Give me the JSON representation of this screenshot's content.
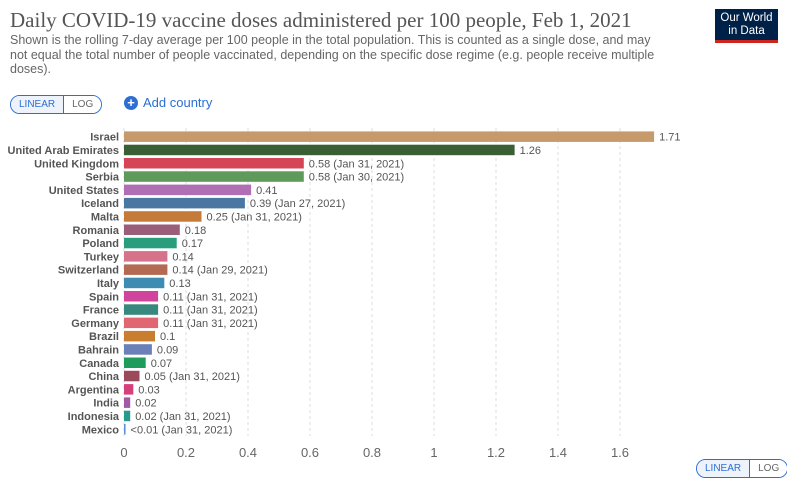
{
  "header": {
    "title": "Daily COVID-19 vaccine doses administered per 100 people, Feb 1, 2021",
    "subtitle": "Shown is the rolling 7-day average per 100 people in the total population. This is counted as a single dose, and may not equal the total number of people vaccinated, depending on the specific dose regime (e.g. people receive multiple doses).",
    "logo_line1": "Our World",
    "logo_line2": "in Data"
  },
  "controls": {
    "linear_label": "LINEAR",
    "log_label": "LOG",
    "add_country_label": "Add country",
    "accent_color": "#2c6ed5"
  },
  "chart_data": {
    "type": "bar",
    "orientation": "horizontal",
    "title": "Daily COVID-19 vaccine doses administered per 100 people, Feb 1, 2021",
    "xlabel": "",
    "ylabel": "",
    "xlim": [
      0,
      1.71
    ],
    "xticks": [
      0,
      0.2,
      0.4,
      0.6,
      0.8,
      1,
      1.2,
      1.4,
      1.6
    ],
    "grid": true,
    "bars": [
      {
        "category": "Israel",
        "value": 1.71,
        "label": "1.71",
        "color": "#c69a6b"
      },
      {
        "category": "United Arab Emirates",
        "value": 1.26,
        "label": "1.26",
        "color": "#3a5f34"
      },
      {
        "category": "United Kingdom",
        "value": 0.58,
        "label": "0.58 (Jan 31, 2021)",
        "color": "#d64555"
      },
      {
        "category": "Serbia",
        "value": 0.58,
        "label": "0.58 (Jan 30, 2021)",
        "color": "#5e9a5a"
      },
      {
        "category": "United States",
        "value": 0.41,
        "label": "0.41",
        "color": "#b06fb5"
      },
      {
        "category": "Iceland",
        "value": 0.39,
        "label": "0.39 (Jan 27, 2021)",
        "color": "#4a77a2"
      },
      {
        "category": "Malta",
        "value": 0.25,
        "label": "0.25 (Jan 31, 2021)",
        "color": "#c47a38"
      },
      {
        "category": "Romania",
        "value": 0.18,
        "label": "0.18",
        "color": "#9b5e7a"
      },
      {
        "category": "Poland",
        "value": 0.17,
        "label": "0.17",
        "color": "#2a9d7c"
      },
      {
        "category": "Turkey",
        "value": 0.14,
        "label": "0.14",
        "color": "#d6738a"
      },
      {
        "category": "Switzerland",
        "value": 0.14,
        "label": "0.14 (Jan 29, 2021)",
        "color": "#b46a52"
      },
      {
        "category": "Italy",
        "value": 0.13,
        "label": "0.13",
        "color": "#3f8cb2"
      },
      {
        "category": "Spain",
        "value": 0.11,
        "label": "0.11 (Jan 31, 2021)",
        "color": "#d1449e"
      },
      {
        "category": "France",
        "value": 0.11,
        "label": "0.11 (Jan 31, 2021)",
        "color": "#36897c"
      },
      {
        "category": "Germany",
        "value": 0.11,
        "label": "0.11 (Jan 31, 2021)",
        "color": "#e06672"
      },
      {
        "category": "Brazil",
        "value": 0.1,
        "label": "0.1",
        "color": "#c87e2e"
      },
      {
        "category": "Bahrain",
        "value": 0.09,
        "label": "0.09",
        "color": "#6b7fb8"
      },
      {
        "category": "Canada",
        "value": 0.07,
        "label": "0.07",
        "color": "#1f9c5c"
      },
      {
        "category": "China",
        "value": 0.05,
        "label": "0.05 (Jan 31, 2021)",
        "color": "#9a4a5a"
      },
      {
        "category": "Argentina",
        "value": 0.03,
        "label": "0.03",
        "color": "#d6407a"
      },
      {
        "category": "India",
        "value": 0.02,
        "label": "0.02",
        "color": "#a05aa8"
      },
      {
        "category": "Indonesia",
        "value": 0.02,
        "label": "0.02 (Jan 31, 2021)",
        "color": "#269a8c"
      },
      {
        "category": "Mexico",
        "value": 0.005,
        "label": "<0.01 (Jan 31, 2021)",
        "color": "#5a8fd6"
      }
    ]
  }
}
